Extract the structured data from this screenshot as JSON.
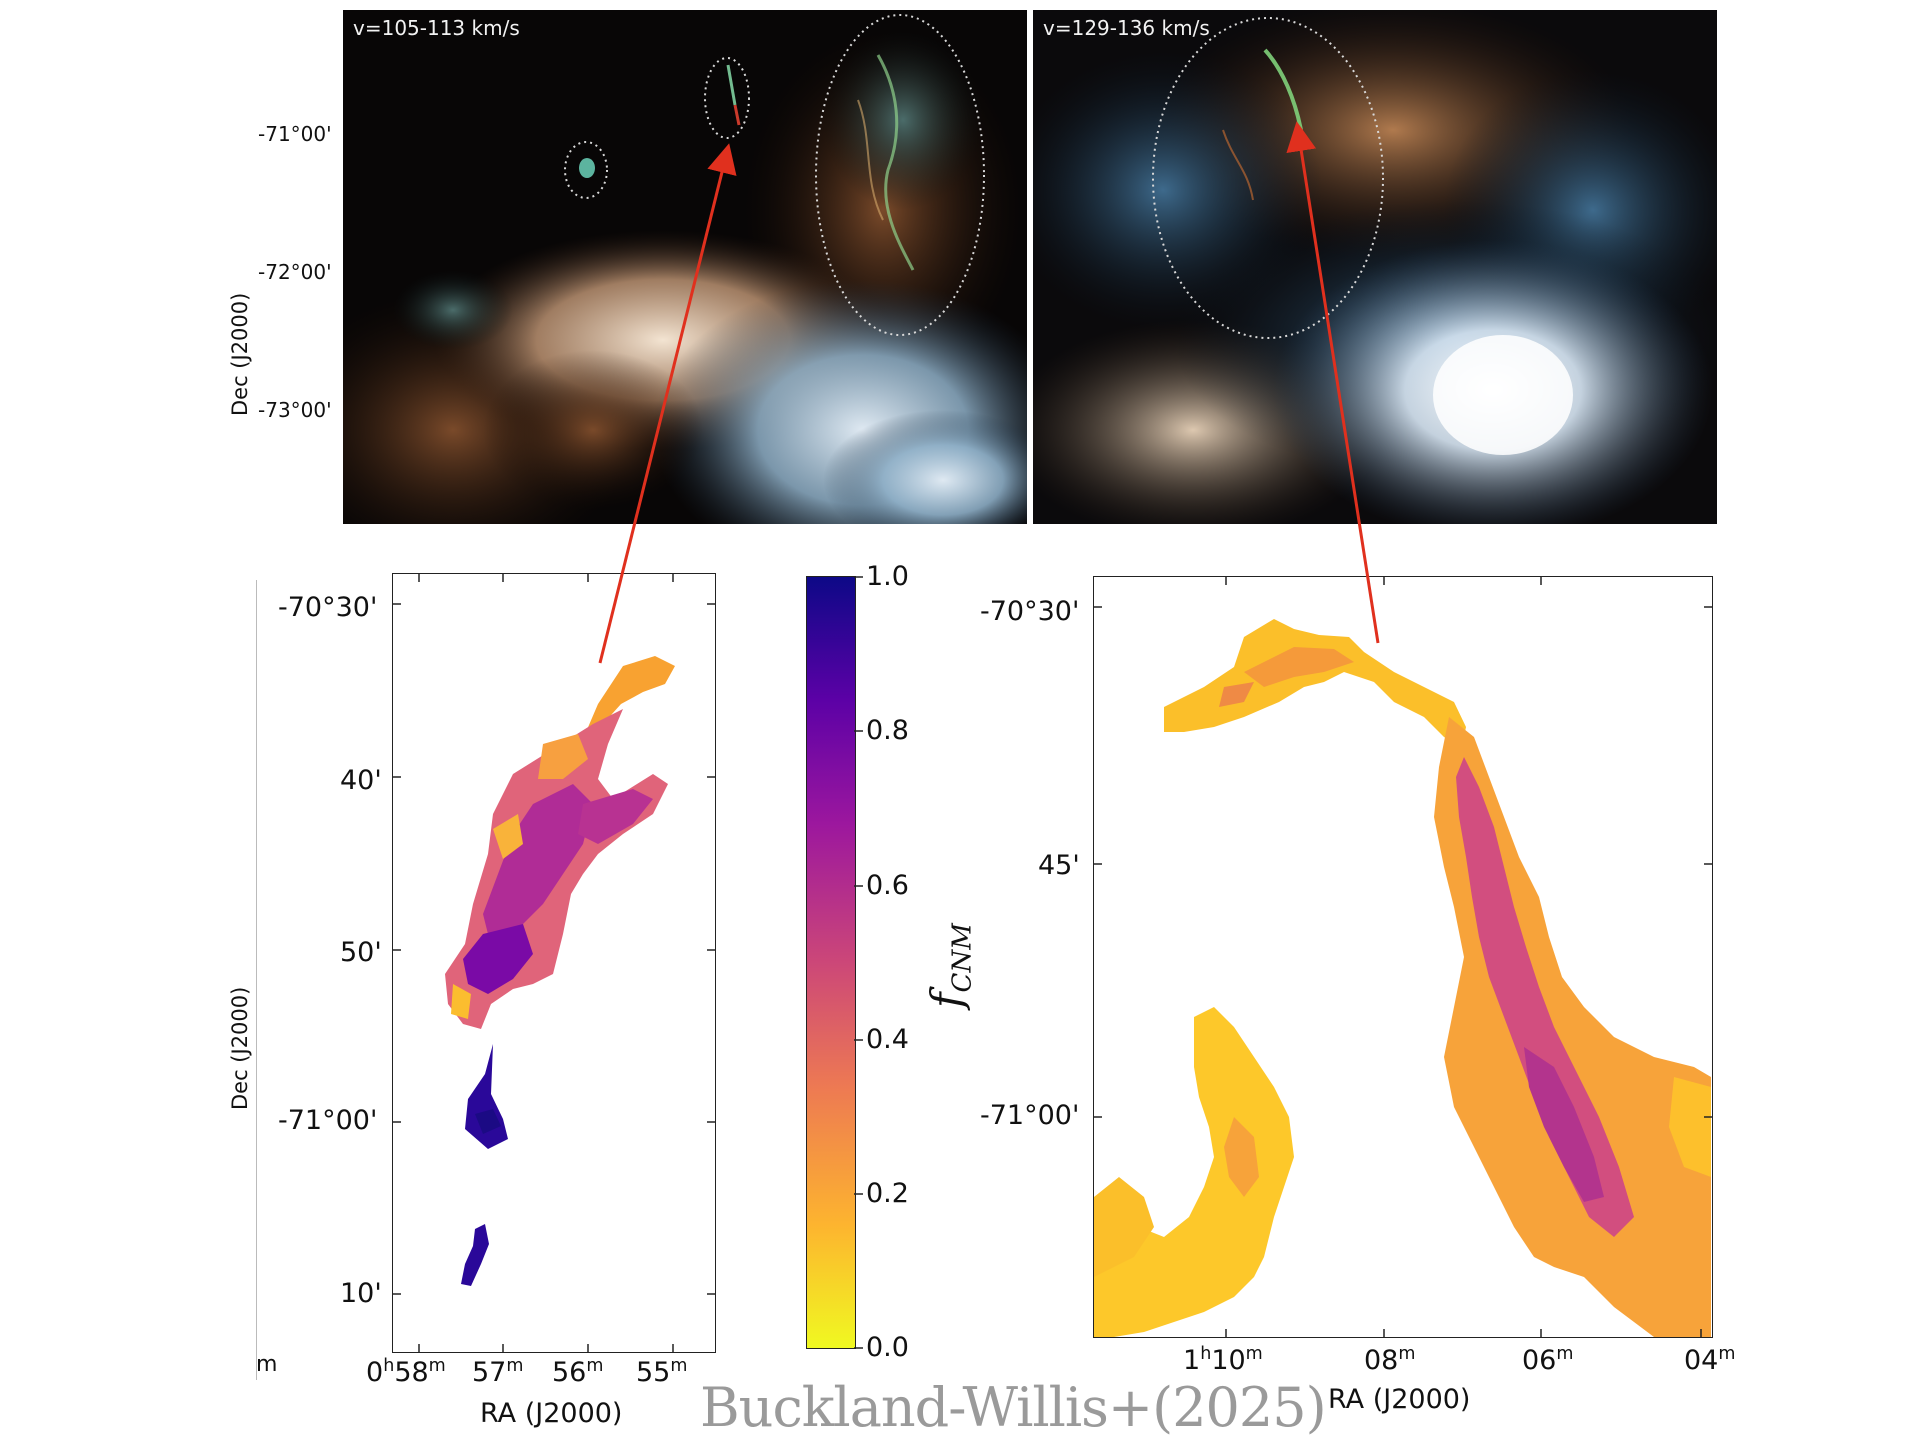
{
  "top_panels": {
    "left": {
      "velocity_label": "v=105-113 km/s",
      "dec_ticks": [
        "-71°00'",
        "-72°00'",
        "-73°00'"
      ],
      "dec_axis_label": "Dec (J2000)"
    },
    "right": {
      "velocity_label": "v=129-136 km/s"
    }
  },
  "bottom_left_map": {
    "dec_axis_label": "Dec (J2000)",
    "dec_ticks": [
      "-70°30'",
      "40'",
      "50'",
      "-71°00'",
      "10'"
    ],
    "ra_ticks": [
      "0h58m",
      "57m",
      "56m",
      "55m"
    ],
    "ra_axis_label": "RA (J2000)",
    "edge_fragment": "m"
  },
  "colorbar": {
    "ticks": [
      "1.0",
      "0.8",
      "0.6",
      "0.4",
      "0.2",
      "0.0"
    ],
    "label_main": "f",
    "label_sub": "CNM",
    "colors": [
      "#0d0887",
      "#5c01a6",
      "#9c179e",
      "#cc4778",
      "#ed7953",
      "#fdb42f",
      "#f0f921"
    ]
  },
  "bottom_right_map": {
    "dec_ticks": [
      "-70°30'",
      "45'",
      "-71°00'"
    ],
    "ra_ticks": [
      "1h10m",
      "08m",
      "06m",
      "04m"
    ],
    "ra_axis_label": "RA (J2000)"
  },
  "credit": "Buckland-Willis+(2025)",
  "arrow_color": "#e0301e"
}
